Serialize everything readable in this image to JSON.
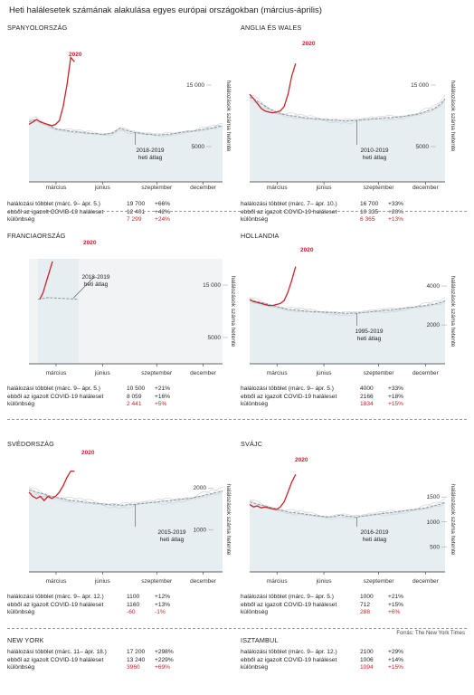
{
  "title": "Heti halálesetek számának alakulása egyes európai országokban (március-április)",
  "source": "Forrás: The New York Times",
  "colors": {
    "highlight": "#c9252b",
    "band": "#e6eef2",
    "avg": "#8a97a0",
    "faint": "#cfd6da",
    "text": "#222222"
  },
  "chart_data": [
    {
      "type": "line",
      "title": "SPANYOLORSZÁG",
      "ylabel": "halálozások száma hetente",
      "x_labels": [
        "március",
        "június",
        "szeptember",
        "december"
      ],
      "y_ticks": [
        5000,
        15000
      ],
      "y_tick_labels": [
        "5000",
        "15 000"
      ],
      "ylim": [
        0,
        20000
      ],
      "avg_label": [
        "2018-2019",
        "heti átlag"
      ],
      "series_2020_label": "2020",
      "series_2020": [
        8600,
        9000,
        9400,
        9000,
        8800,
        8600,
        8400,
        8600,
        9200,
        11500,
        15000,
        19500,
        18800
      ],
      "avg_series": [
        9000,
        9300,
        9400,
        9100,
        8800,
        8500,
        8200,
        7900,
        7800,
        7700,
        7600,
        7500,
        7400,
        7400,
        7300,
        7200,
        7200,
        7100,
        7100,
        7000,
        7000,
        7100,
        7200,
        7600,
        8000,
        7800,
        7600,
        7400,
        7300,
        7200,
        7100,
        7000,
        7000,
        6900,
        6900,
        6900,
        7000,
        7000,
        7100,
        7200,
        7300,
        7400,
        7500,
        7500,
        7600,
        7700,
        7800,
        7900,
        8000,
        8100,
        8300,
        8400
      ],
      "stats": [
        {
          "label": "halálozási többlet (márc. 9– ápr. 5.)",
          "value": "19 700",
          "pct": "+66%"
        },
        {
          "label": "ebből az igazolt COVID-19 haláleset",
          "value": "12 401",
          "pct": "+42%"
        },
        {
          "label": "különbség",
          "value": "7 299",
          "pct": "+24%",
          "highlight": true
        }
      ]
    },
    {
      "type": "line",
      "title": "ANGLIA ÉS WALES",
      "ylabel": "halálozások száma hetente",
      "x_labels": [
        "március",
        "június",
        "szeptember",
        "december"
      ],
      "y_ticks": [
        5000,
        15000
      ],
      "y_tick_labels": [
        "5000",
        "15 000"
      ],
      "ylim": [
        0,
        20000
      ],
      "avg_label": [
        "2010-2019",
        "heti átlag"
      ],
      "series_2020_label": "2020",
      "series_2020": [
        13500,
        12800,
        12000,
        11200,
        10800,
        10600,
        10500,
        10600,
        10800,
        11500,
        13500,
        16500,
        18500
      ],
      "avg_series": [
        13000,
        12800,
        12400,
        12000,
        11600,
        11200,
        10900,
        10600,
        10400,
        10200,
        10100,
        10000,
        9900,
        9800,
        9700,
        9600,
        9600,
        9500,
        9500,
        9400,
        9400,
        9300,
        9300,
        9300,
        9200,
        9200,
        9200,
        9200,
        9300,
        9300,
        9400,
        9400,
        9500,
        9500,
        9600,
        9600,
        9700,
        9700,
        9800,
        9800,
        9900,
        10000,
        10100,
        10200,
        10300,
        10500,
        10700,
        10900,
        11100,
        11500,
        12000,
        12800
      ],
      "stats": [
        {
          "label": "halálozási többlet (márc. 7– ápr. 10.)",
          "value": "16 700",
          "pct": "+33%"
        },
        {
          "label": "ebből az igazolt COVID-19 haláleset",
          "value": "10 335",
          "pct": "+20%"
        },
        {
          "label": "különbség",
          "value": "6 365",
          "pct": "+13%",
          "highlight": true
        }
      ]
    },
    {
      "type": "line",
      "title": "FRANCIAORSZÁG",
      "ylabel": "halálozások száma hetente",
      "x_labels": [
        "március",
        "június",
        "szeptember",
        "december"
      ],
      "y_ticks": [
        5000,
        15000
      ],
      "y_tick_labels": [
        "5000",
        "15 000"
      ],
      "ylim": [
        0,
        20000
      ],
      "avg_label": [
        "2018-2019",
        "heti átlag"
      ],
      "series_2020_label": "2020",
      "series_2020": [
        12300,
        13500,
        15500,
        17500,
        19500
      ],
      "avg_series": [
        12300,
        12600,
        12500,
        12400,
        12300
      ],
      "stats": [
        {
          "label": "halálozási többlet (márc. 9– ápr. 5.)",
          "value": "10 500",
          "pct": "+21%"
        },
        {
          "label": "ebből az igazolt COVID-19 haláleset",
          "value": "8 059",
          "pct": "+16%"
        },
        {
          "label": "különbség",
          "value": "2 441",
          "pct": "+5%",
          "highlight": true
        }
      ]
    },
    {
      "type": "line",
      "title": "HOLLANDIA",
      "ylabel": "halálozások száma hetente",
      "x_labels": [
        "március",
        "június",
        "szeptember",
        "december"
      ],
      "y_ticks": [
        2000,
        4000
      ],
      "y_tick_labels": [
        "2000",
        "4000"
      ],
      "ylim": [
        0,
        5400
      ],
      "avg_label": [
        "1995-2019",
        "heti átlag"
      ],
      "series_2020_label": "2020",
      "series_2020": [
        3300,
        3200,
        3150,
        3100,
        3050,
        3000,
        3000,
        3050,
        3100,
        3250,
        3700,
        4300,
        5000
      ],
      "avg_series": [
        3300,
        3250,
        3200,
        3150,
        3100,
        3050,
        3000,
        2950,
        2900,
        2850,
        2800,
        2780,
        2760,
        2740,
        2720,
        2700,
        2690,
        2680,
        2670,
        2660,
        2650,
        2640,
        2630,
        2620,
        2610,
        2600,
        2600,
        2600,
        2610,
        2620,
        2640,
        2660,
        2680,
        2700,
        2720,
        2740,
        2760,
        2780,
        2800,
        2820,
        2850,
        2880,
        2900,
        2920,
        2950,
        2980,
        3000,
        3030,
        3060,
        3100,
        3150,
        3250
      ],
      "stats": [
        {
          "label": "halálozási többlet (márc. 9– ápr. 5.)",
          "value": "4000",
          "pct": "+33%"
        },
        {
          "label": "ebből az igazolt COVID-19 haláleset",
          "value": "2166",
          "pct": "+18%"
        },
        {
          "label": "különbség",
          "value": "1834",
          "pct": "+15%",
          "highlight": true
        }
      ]
    },
    {
      "type": "line",
      "title": "SVÉDORSZÁG",
      "ylabel": "halálozások száma hetente",
      "x_labels": [
        "március",
        "június",
        "szeptember",
        "december"
      ],
      "y_ticks": [
        1000,
        2000
      ],
      "y_tick_labels": [
        "1000",
        "2000"
      ],
      "ylim": [
        0,
        2500
      ],
      "avg_label": [
        "2015-2019",
        "heti átlag"
      ],
      "series_2020_label": "2020",
      "series_2020": [
        1900,
        1800,
        1750,
        1800,
        1700,
        1800,
        1750,
        1800,
        1900,
        2050,
        2250,
        2400,
        2400
      ],
      "avg_series": [
        1950,
        1930,
        1900,
        1880,
        1850,
        1820,
        1800,
        1780,
        1760,
        1740,
        1720,
        1700,
        1690,
        1680,
        1670,
        1660,
        1650,
        1640,
        1630,
        1620,
        1610,
        1600,
        1600,
        1600,
        1590,
        1590,
        1600,
        1600,
        1610,
        1620,
        1630,
        1640,
        1650,
        1660,
        1670,
        1680,
        1690,
        1700,
        1710,
        1720,
        1730,
        1740,
        1750,
        1760,
        1780,
        1800,
        1820,
        1840,
        1860,
        1880,
        1900,
        1930
      ],
      "stats": [
        {
          "label": "halálozási többlet (márc. 9– ápr. 12.)",
          "value": "1100",
          "pct": "+12%"
        },
        {
          "label": "ebből az igazolt COVID-19 haláleset",
          "value": "1160",
          "pct": "+13%"
        },
        {
          "label": "különbség",
          "value": "-60",
          "pct": "-1%",
          "highlight": true
        }
      ]
    },
    {
      "type": "line",
      "title": "SVÁJC",
      "ylabel": "halálozások száma hetente",
      "x_labels": [
        "március",
        "június",
        "szeptember",
        "december"
      ],
      "y_ticks": [
        500,
        1000,
        1500
      ],
      "y_tick_labels": [
        "500",
        "1000",
        "1500"
      ],
      "ylim": [
        0,
        2100
      ],
      "avg_label": [
        "2016-2019",
        "heti átlag"
      ],
      "series_2020_label": "2020",
      "series_2020": [
        1350,
        1300,
        1320,
        1280,
        1300,
        1280,
        1260,
        1250,
        1300,
        1400,
        1600,
        1800,
        1950
      ],
      "avg_series": [
        1400,
        1380,
        1360,
        1340,
        1320,
        1300,
        1280,
        1260,
        1240,
        1220,
        1200,
        1190,
        1180,
        1170,
        1160,
        1150,
        1140,
        1130,
        1120,
        1110,
        1100,
        1100,
        1110,
        1130,
        1140,
        1120,
        1110,
        1100,
        1100,
        1110,
        1120,
        1130,
        1140,
        1150,
        1160,
        1170,
        1180,
        1190,
        1200,
        1210,
        1220,
        1230,
        1240,
        1250,
        1260,
        1270,
        1280,
        1300,
        1320,
        1340,
        1360,
        1400
      ],
      "stats": [
        {
          "label": "halálozási többlet (márc. 9– ápr. 5.)",
          "value": "1000",
          "pct": "+21%"
        },
        {
          "label": "ebből az igazolt COVID-19 haláleset",
          "value": "712",
          "pct": "+15%"
        },
        {
          "label": "különbség",
          "value": "288",
          "pct": "+6%",
          "highlight": true
        }
      ]
    }
  ],
  "extra_panels": [
    {
      "title": "NEW YORK",
      "stats": [
        {
          "label": "halálozási többlet (márc. 11– ápr. 18.)",
          "value": "17 200",
          "pct": "+298%"
        },
        {
          "label": "ebből az igazolt COVID-19 haláleset",
          "value": "13 240",
          "pct": "+229%"
        },
        {
          "label": "különbség",
          "value": "3960",
          "pct": "+69%",
          "highlight": true
        }
      ]
    },
    {
      "title": "ISZTAMBUL",
      "stats": [
        {
          "label": "halálozási többlet (márc. 9– ápr. 12.)",
          "value": "2100",
          "pct": "+29%"
        },
        {
          "label": "ebből az igazolt COVID-19 haláleset",
          "value": "1006",
          "pct": "+14%"
        },
        {
          "label": "különbség",
          "value": "1094",
          "pct": "+15%",
          "highlight": true
        }
      ]
    }
  ]
}
